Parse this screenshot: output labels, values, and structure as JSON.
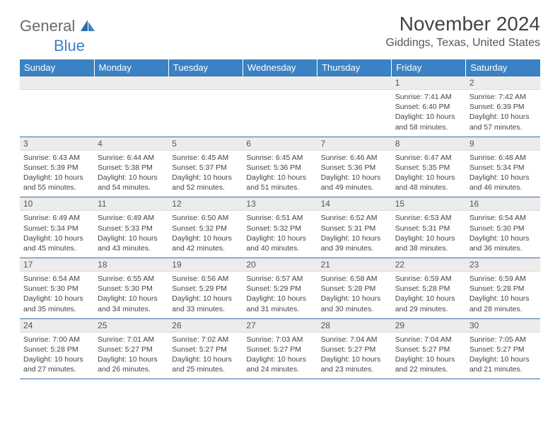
{
  "logo": {
    "part1": "General",
    "part2": "Blue"
  },
  "title": "November 2024",
  "location": "Giddings, Texas, United States",
  "colors": {
    "header_bg": "#3b82c4",
    "header_fg": "#ffffff",
    "grid_line": "#3b6ca0",
    "daynum_bg": "#ececec",
    "text": "#444444"
  },
  "weekdays": [
    "Sunday",
    "Monday",
    "Tuesday",
    "Wednesday",
    "Thursday",
    "Friday",
    "Saturday"
  ],
  "weeks": [
    [
      {
        "n": "",
        "sr": "",
        "ss": "",
        "dl": ""
      },
      {
        "n": "",
        "sr": "",
        "ss": "",
        "dl": ""
      },
      {
        "n": "",
        "sr": "",
        "ss": "",
        "dl": ""
      },
      {
        "n": "",
        "sr": "",
        "ss": "",
        "dl": ""
      },
      {
        "n": "",
        "sr": "",
        "ss": "",
        "dl": ""
      },
      {
        "n": "1",
        "sr": "Sunrise: 7:41 AM",
        "ss": "Sunset: 6:40 PM",
        "dl": "Daylight: 10 hours and 58 minutes."
      },
      {
        "n": "2",
        "sr": "Sunrise: 7:42 AM",
        "ss": "Sunset: 6:39 PM",
        "dl": "Daylight: 10 hours and 57 minutes."
      }
    ],
    [
      {
        "n": "3",
        "sr": "Sunrise: 6:43 AM",
        "ss": "Sunset: 5:39 PM",
        "dl": "Daylight: 10 hours and 55 minutes."
      },
      {
        "n": "4",
        "sr": "Sunrise: 6:44 AM",
        "ss": "Sunset: 5:38 PM",
        "dl": "Daylight: 10 hours and 54 minutes."
      },
      {
        "n": "5",
        "sr": "Sunrise: 6:45 AM",
        "ss": "Sunset: 5:37 PM",
        "dl": "Daylight: 10 hours and 52 minutes."
      },
      {
        "n": "6",
        "sr": "Sunrise: 6:45 AM",
        "ss": "Sunset: 5:36 PM",
        "dl": "Daylight: 10 hours and 51 minutes."
      },
      {
        "n": "7",
        "sr": "Sunrise: 6:46 AM",
        "ss": "Sunset: 5:36 PM",
        "dl": "Daylight: 10 hours and 49 minutes."
      },
      {
        "n": "8",
        "sr": "Sunrise: 6:47 AM",
        "ss": "Sunset: 5:35 PM",
        "dl": "Daylight: 10 hours and 48 minutes."
      },
      {
        "n": "9",
        "sr": "Sunrise: 6:48 AM",
        "ss": "Sunset: 5:34 PM",
        "dl": "Daylight: 10 hours and 46 minutes."
      }
    ],
    [
      {
        "n": "10",
        "sr": "Sunrise: 6:49 AM",
        "ss": "Sunset: 5:34 PM",
        "dl": "Daylight: 10 hours and 45 minutes."
      },
      {
        "n": "11",
        "sr": "Sunrise: 6:49 AM",
        "ss": "Sunset: 5:33 PM",
        "dl": "Daylight: 10 hours and 43 minutes."
      },
      {
        "n": "12",
        "sr": "Sunrise: 6:50 AM",
        "ss": "Sunset: 5:32 PM",
        "dl": "Daylight: 10 hours and 42 minutes."
      },
      {
        "n": "13",
        "sr": "Sunrise: 6:51 AM",
        "ss": "Sunset: 5:32 PM",
        "dl": "Daylight: 10 hours and 40 minutes."
      },
      {
        "n": "14",
        "sr": "Sunrise: 6:52 AM",
        "ss": "Sunset: 5:31 PM",
        "dl": "Daylight: 10 hours and 39 minutes."
      },
      {
        "n": "15",
        "sr": "Sunrise: 6:53 AM",
        "ss": "Sunset: 5:31 PM",
        "dl": "Daylight: 10 hours and 38 minutes."
      },
      {
        "n": "16",
        "sr": "Sunrise: 6:54 AM",
        "ss": "Sunset: 5:30 PM",
        "dl": "Daylight: 10 hours and 36 minutes."
      }
    ],
    [
      {
        "n": "17",
        "sr": "Sunrise: 6:54 AM",
        "ss": "Sunset: 5:30 PM",
        "dl": "Daylight: 10 hours and 35 minutes."
      },
      {
        "n": "18",
        "sr": "Sunrise: 6:55 AM",
        "ss": "Sunset: 5:30 PM",
        "dl": "Daylight: 10 hours and 34 minutes."
      },
      {
        "n": "19",
        "sr": "Sunrise: 6:56 AM",
        "ss": "Sunset: 5:29 PM",
        "dl": "Daylight: 10 hours and 33 minutes."
      },
      {
        "n": "20",
        "sr": "Sunrise: 6:57 AM",
        "ss": "Sunset: 5:29 PM",
        "dl": "Daylight: 10 hours and 31 minutes."
      },
      {
        "n": "21",
        "sr": "Sunrise: 6:58 AM",
        "ss": "Sunset: 5:28 PM",
        "dl": "Daylight: 10 hours and 30 minutes."
      },
      {
        "n": "22",
        "sr": "Sunrise: 6:59 AM",
        "ss": "Sunset: 5:28 PM",
        "dl": "Daylight: 10 hours and 29 minutes."
      },
      {
        "n": "23",
        "sr": "Sunrise: 6:59 AM",
        "ss": "Sunset: 5:28 PM",
        "dl": "Daylight: 10 hours and 28 minutes."
      }
    ],
    [
      {
        "n": "24",
        "sr": "Sunrise: 7:00 AM",
        "ss": "Sunset: 5:28 PM",
        "dl": "Daylight: 10 hours and 27 minutes."
      },
      {
        "n": "25",
        "sr": "Sunrise: 7:01 AM",
        "ss": "Sunset: 5:27 PM",
        "dl": "Daylight: 10 hours and 26 minutes."
      },
      {
        "n": "26",
        "sr": "Sunrise: 7:02 AM",
        "ss": "Sunset: 5:27 PM",
        "dl": "Daylight: 10 hours and 25 minutes."
      },
      {
        "n": "27",
        "sr": "Sunrise: 7:03 AM",
        "ss": "Sunset: 5:27 PM",
        "dl": "Daylight: 10 hours and 24 minutes."
      },
      {
        "n": "28",
        "sr": "Sunrise: 7:04 AM",
        "ss": "Sunset: 5:27 PM",
        "dl": "Daylight: 10 hours and 23 minutes."
      },
      {
        "n": "29",
        "sr": "Sunrise: 7:04 AM",
        "ss": "Sunset: 5:27 PM",
        "dl": "Daylight: 10 hours and 22 minutes."
      },
      {
        "n": "30",
        "sr": "Sunrise: 7:05 AM",
        "ss": "Sunset: 5:27 PM",
        "dl": "Daylight: 10 hours and 21 minutes."
      }
    ]
  ]
}
